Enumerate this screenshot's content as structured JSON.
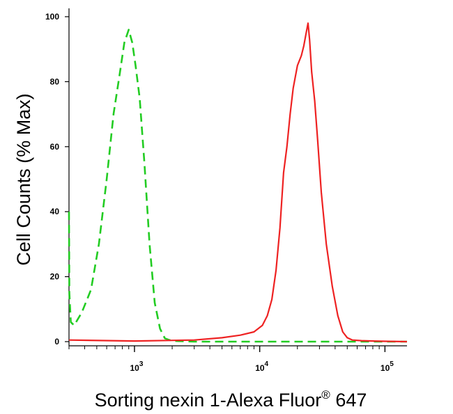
{
  "chart_data": {
    "type": "line",
    "xlabel": "Sorting nexin 1-Alexa Fluor",
    "xlabel_sup": "®",
    "xlabel_suffix": " 647",
    "ylabel": "Cell Counts (% Max)",
    "xscale": "log",
    "xlim": [
      300,
      150000
    ],
    "ylim": [
      0,
      100
    ],
    "grid": false,
    "y_ticks": [
      0,
      20,
      40,
      60,
      80,
      100
    ],
    "y_tick_labels": [
      "0",
      "20",
      "40",
      "60",
      "80",
      "100"
    ],
    "x_major_ticks": [
      1000,
      10000,
      100000
    ],
    "x_tick_labels": [
      {
        "base": "10",
        "exp": "3"
      },
      {
        "base": "10",
        "exp": "4"
      },
      {
        "base": "10",
        "exp": "5"
      }
    ],
    "series": [
      {
        "color": "#22cc22",
        "style": "dashed",
        "x": [
          300,
          302,
          310,
          330,
          380,
          450,
          520,
          600,
          680,
          760,
          830,
          900,
          960,
          1020,
          1100,
          1200,
          1320,
          1450,
          1600,
          1750,
          1900,
          2100,
          2500,
          3000,
          5000,
          10000,
          30000,
          60000,
          100000,
          150000
        ],
        "y": [
          40,
          15,
          6,
          5,
          9,
          16,
          30,
          50,
          70,
          82,
          92,
          96,
          92,
          85,
          75,
          55,
          30,
          12,
          4,
          1,
          0.5,
          0.2,
          0.1,
          0,
          0,
          0,
          0,
          0,
          0,
          0
        ]
      },
      {
        "color": "#ee2222",
        "style": "solid",
        "x": [
          300,
          1000,
          3000,
          5000,
          7000,
          9000,
          10500,
          11500,
          12500,
          13500,
          14500,
          15500,
          16500,
          17500,
          18500,
          20000,
          21500,
          22500,
          23500,
          24300,
          25000,
          26000,
          27500,
          29000,
          31000,
          34000,
          38000,
          42000,
          46000,
          50000,
          55000,
          65000,
          80000,
          100000,
          150000
        ],
        "y": [
          0.5,
          0.2,
          0.5,
          1.2,
          2,
          3,
          5,
          8,
          13,
          22,
          35,
          52,
          60,
          70,
          78,
          85,
          88,
          91,
          95,
          98,
          93,
          83,
          74,
          62,
          46,
          30,
          17,
          8,
          3,
          1.2,
          0.5,
          0.3,
          0.2,
          0.1,
          0
        ]
      }
    ]
  }
}
